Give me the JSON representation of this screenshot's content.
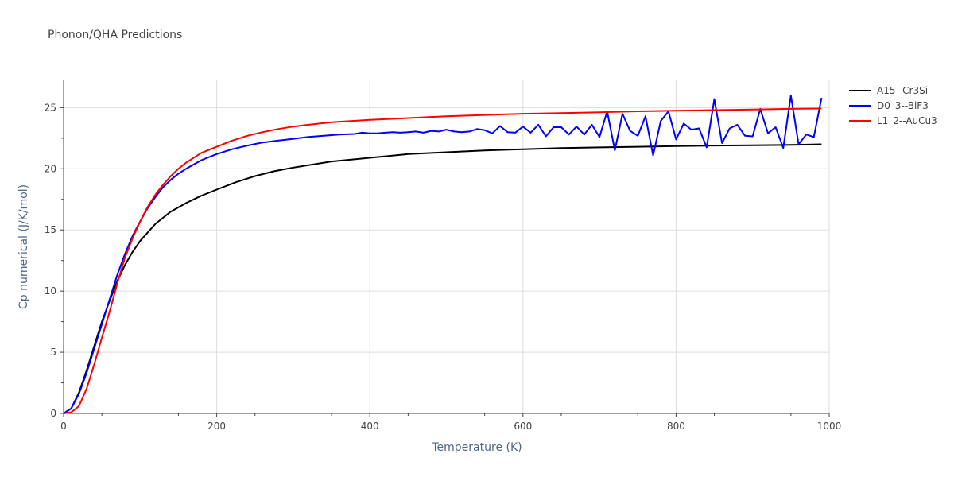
{
  "chart_data": {
    "type": "line",
    "title": "Phonon/QHA Predictions",
    "xlabel": "Temperature (K)",
    "ylabel": "Cp numerical (J/K/mol)",
    "xlim": [
      0,
      1000
    ],
    "ylim": [
      0,
      27.3
    ],
    "xticks": [
      0,
      200,
      400,
      600,
      800,
      1000
    ],
    "yticks": [
      0,
      5,
      10,
      15,
      20,
      25
    ],
    "grid": true,
    "legend_position": "top-right",
    "series": [
      {
        "name": "A15--Cr3Si",
        "color": "#000000",
        "points": [
          [
            0,
            0
          ],
          [
            10,
            0.4
          ],
          [
            20,
            1.7
          ],
          [
            30,
            3.5
          ],
          [
            40,
            5.5
          ],
          [
            50,
            7.5
          ],
          [
            60,
            9.2
          ],
          [
            70,
            10.8
          ],
          [
            80,
            12.1
          ],
          [
            90,
            13.2
          ],
          [
            100,
            14.1
          ],
          [
            120,
            15.5
          ],
          [
            140,
            16.5
          ],
          [
            160,
            17.2
          ],
          [
            180,
            17.8
          ],
          [
            200,
            18.3
          ],
          [
            225,
            18.9
          ],
          [
            250,
            19.4
          ],
          [
            275,
            19.8
          ],
          [
            300,
            20.1
          ],
          [
            350,
            20.6
          ],
          [
            400,
            20.9
          ],
          [
            450,
            21.2
          ],
          [
            500,
            21.35
          ],
          [
            550,
            21.5
          ],
          [
            600,
            21.6
          ],
          [
            650,
            21.7
          ],
          [
            700,
            21.75
          ],
          [
            750,
            21.8
          ],
          [
            800,
            21.85
          ],
          [
            850,
            21.9
          ],
          [
            900,
            21.92
          ],
          [
            950,
            21.95
          ],
          [
            990,
            22.0
          ]
        ]
      },
      {
        "name": "D0_3--BiF3",
        "color": "#0000ff",
        "points": [
          [
            0,
            0
          ],
          [
            10,
            0.4
          ],
          [
            20,
            1.6
          ],
          [
            30,
            3.3
          ],
          [
            40,
            5.3
          ],
          [
            50,
            7.3
          ],
          [
            60,
            9.3
          ],
          [
            70,
            11.3
          ],
          [
            80,
            13.0
          ],
          [
            90,
            14.5
          ],
          [
            100,
            15.7
          ],
          [
            110,
            16.8
          ],
          [
            120,
            17.7
          ],
          [
            130,
            18.5
          ],
          [
            140,
            19.1
          ],
          [
            150,
            19.6
          ],
          [
            160,
            20.0
          ],
          [
            180,
            20.7
          ],
          [
            200,
            21.2
          ],
          [
            220,
            21.6
          ],
          [
            240,
            21.9
          ],
          [
            260,
            22.15
          ],
          [
            280,
            22.3
          ],
          [
            300,
            22.45
          ],
          [
            320,
            22.6
          ],
          [
            340,
            22.7
          ],
          [
            360,
            22.8
          ],
          [
            380,
            22.85
          ],
          [
            390,
            22.95
          ],
          [
            400,
            22.9
          ],
          [
            410,
            22.9
          ],
          [
            420,
            22.95
          ],
          [
            430,
            23.0
          ],
          [
            440,
            22.95
          ],
          [
            450,
            23.0
          ],
          [
            460,
            23.05
          ],
          [
            470,
            22.95
          ],
          [
            480,
            23.1
          ],
          [
            490,
            23.05
          ],
          [
            500,
            23.2
          ],
          [
            510,
            23.05
          ],
          [
            520,
            23.0
          ],
          [
            530,
            23.05
          ],
          [
            540,
            23.25
          ],
          [
            550,
            23.15
          ],
          [
            560,
            22.9
          ],
          [
            570,
            23.5
          ],
          [
            580,
            23.0
          ],
          [
            590,
            22.95
          ],
          [
            600,
            23.45
          ],
          [
            610,
            22.95
          ],
          [
            620,
            23.6
          ],
          [
            630,
            22.65
          ],
          [
            640,
            23.4
          ],
          [
            650,
            23.4
          ],
          [
            660,
            22.8
          ],
          [
            670,
            23.45
          ],
          [
            680,
            22.8
          ],
          [
            690,
            23.6
          ],
          [
            700,
            22.6
          ],
          [
            710,
            24.7
          ],
          [
            720,
            21.5
          ],
          [
            730,
            24.5
          ],
          [
            740,
            23.1
          ],
          [
            750,
            22.7
          ],
          [
            760,
            24.3
          ],
          [
            770,
            21.1
          ],
          [
            780,
            23.9
          ],
          [
            790,
            24.7
          ],
          [
            800,
            22.4
          ],
          [
            810,
            23.7
          ],
          [
            820,
            23.2
          ],
          [
            830,
            23.3
          ],
          [
            840,
            21.75
          ],
          [
            850,
            25.7
          ],
          [
            860,
            22.1
          ],
          [
            870,
            23.3
          ],
          [
            880,
            23.6
          ],
          [
            890,
            22.7
          ],
          [
            900,
            22.65
          ],
          [
            910,
            24.9
          ],
          [
            920,
            22.9
          ],
          [
            930,
            23.4
          ],
          [
            940,
            21.7
          ],
          [
            950,
            26.0
          ],
          [
            960,
            22.0
          ],
          [
            970,
            22.8
          ],
          [
            980,
            22.6
          ],
          [
            990,
            25.8
          ]
        ]
      },
      {
        "name": "L1_2--AuCu3",
        "color": "#ff0000",
        "points": [
          [
            0,
            0
          ],
          [
            10,
            0.1
          ],
          [
            20,
            0.6
          ],
          [
            30,
            2.0
          ],
          [
            40,
            4.0
          ],
          [
            50,
            6.2
          ],
          [
            60,
            8.3
          ],
          [
            70,
            10.6
          ],
          [
            80,
            12.7
          ],
          [
            90,
            14.3
          ],
          [
            100,
            15.7
          ],
          [
            110,
            16.9
          ],
          [
            120,
            17.9
          ],
          [
            130,
            18.7
          ],
          [
            140,
            19.4
          ],
          [
            150,
            20.0
          ],
          [
            160,
            20.5
          ],
          [
            180,
            21.3
          ],
          [
            200,
            21.8
          ],
          [
            220,
            22.3
          ],
          [
            240,
            22.7
          ],
          [
            260,
            23.0
          ],
          [
            280,
            23.25
          ],
          [
            300,
            23.45
          ],
          [
            320,
            23.6
          ],
          [
            350,
            23.8
          ],
          [
            400,
            24.0
          ],
          [
            450,
            24.15
          ],
          [
            500,
            24.3
          ],
          [
            550,
            24.4
          ],
          [
            600,
            24.5
          ],
          [
            650,
            24.55
          ],
          [
            700,
            24.62
          ],
          [
            750,
            24.7
          ],
          [
            800,
            24.75
          ],
          [
            850,
            24.8
          ],
          [
            900,
            24.85
          ],
          [
            950,
            24.9
          ],
          [
            990,
            24.93
          ]
        ]
      }
    ]
  }
}
